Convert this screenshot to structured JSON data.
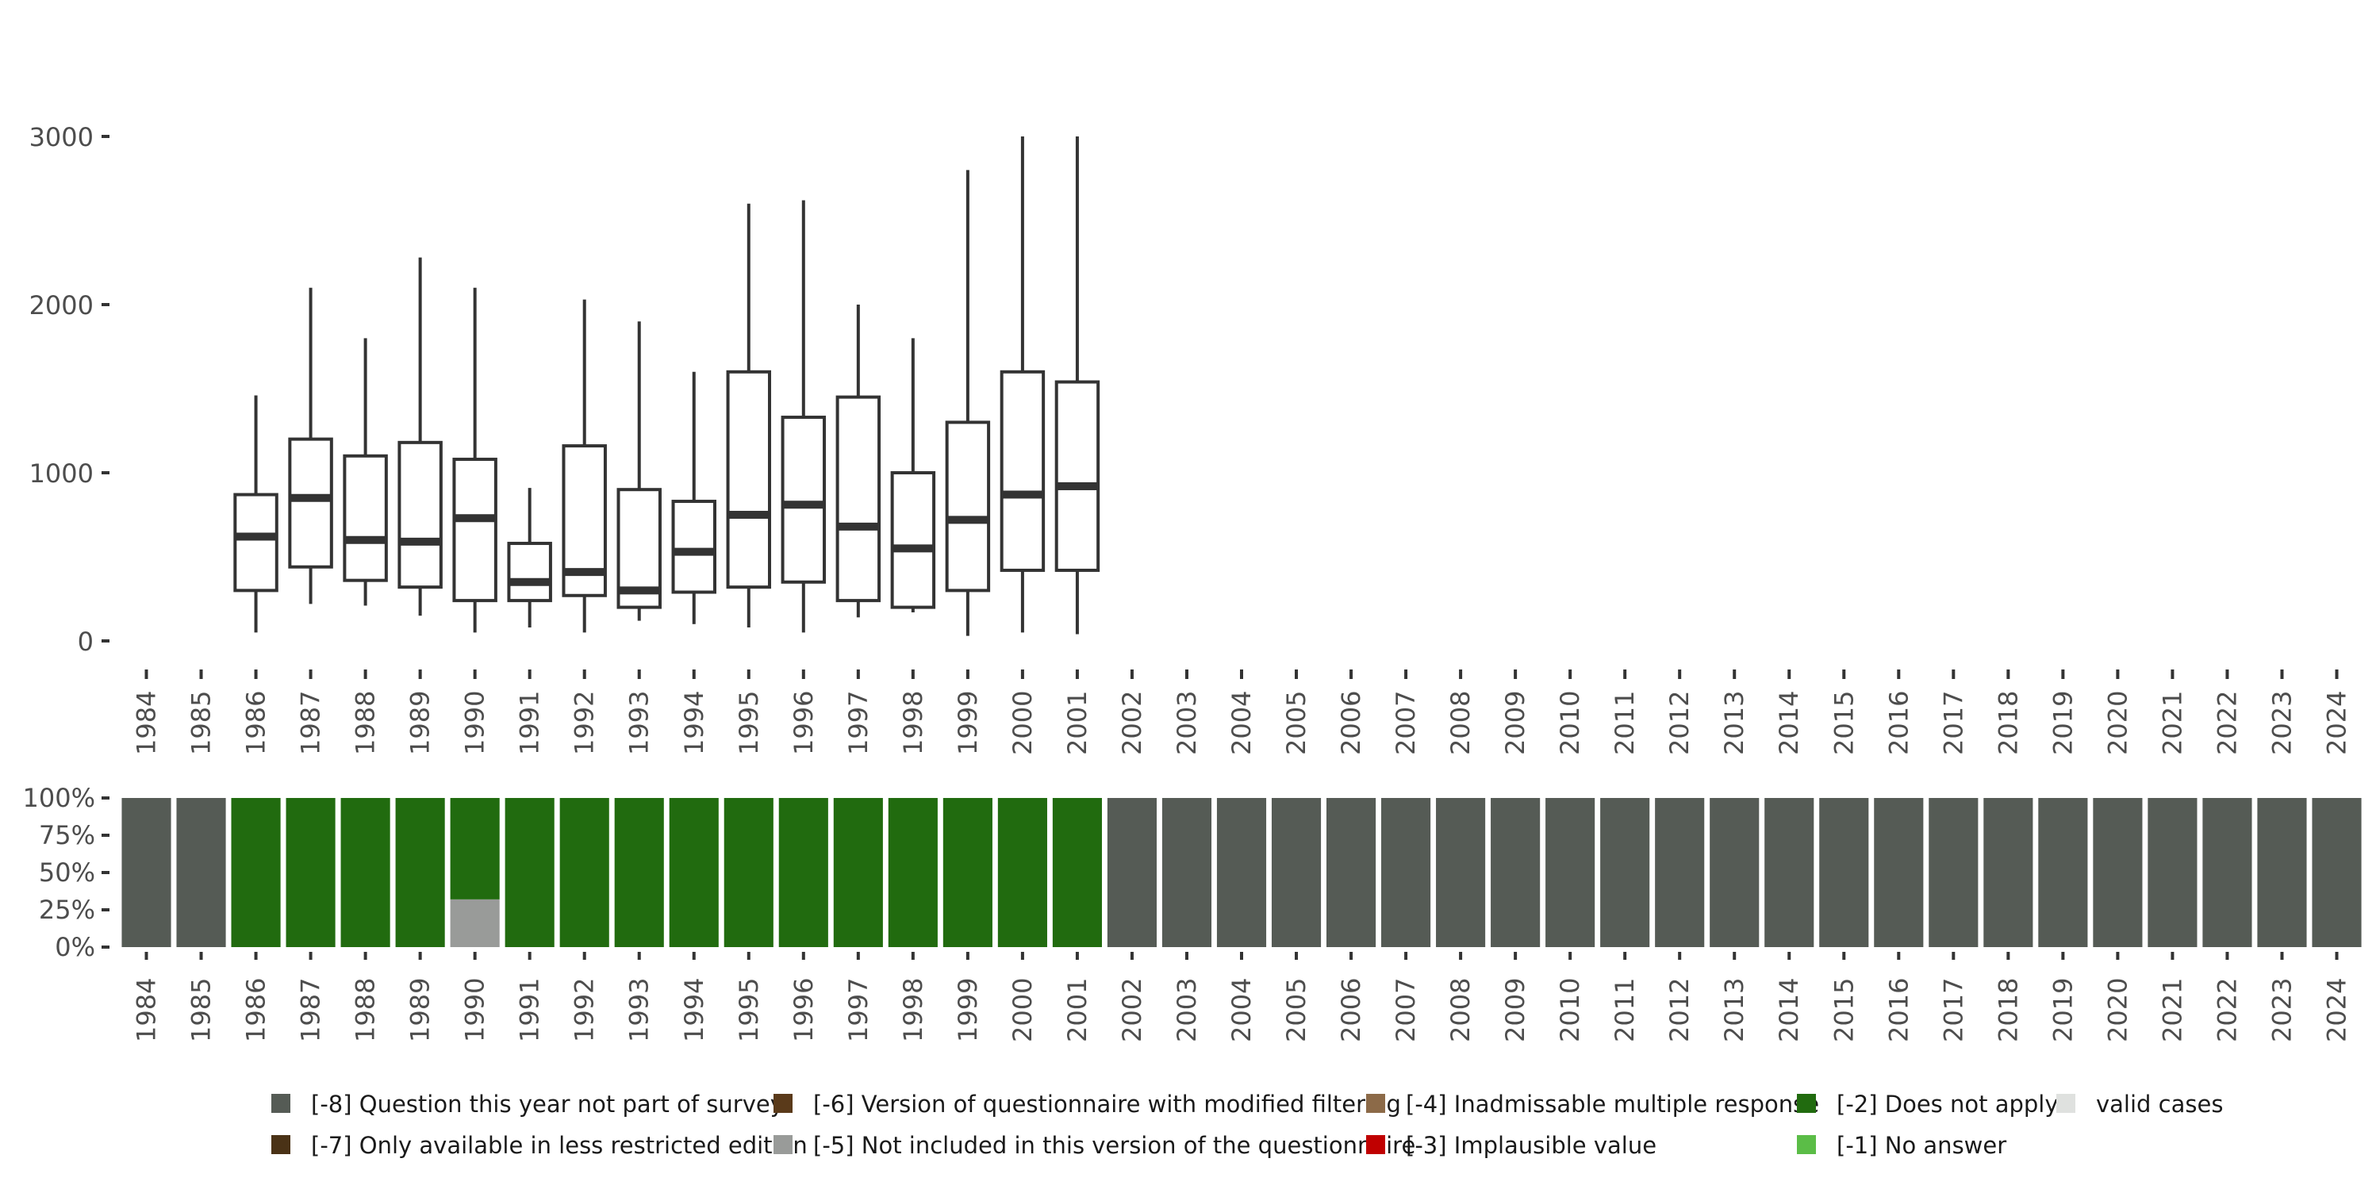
{
  "chart_data": [
    {
      "type": "boxplot",
      "x": [
        "1984",
        "1985",
        "1986",
        "1987",
        "1988",
        "1989",
        "1990",
        "1991",
        "1992",
        "1993",
        "1994",
        "1995",
        "1996",
        "1997",
        "1998",
        "1999",
        "2000",
        "2001",
        "2002",
        "2003",
        "2004",
        "2005",
        "2006",
        "2007",
        "2008",
        "2009",
        "2010",
        "2011",
        "2012",
        "2013",
        "2014",
        "2015",
        "2016",
        "2017",
        "2018",
        "2019",
        "2020",
        "2021",
        "2022",
        "2023",
        "2024"
      ],
      "ylim": [
        0,
        3000
      ],
      "yticks": [
        0,
        1000,
        2000,
        3000
      ],
      "ytick_labels": [
        "0",
        "1000",
        "2000",
        "3000"
      ],
      "boxes": [
        {
          "year": "1986",
          "min": 50,
          "q1": 300,
          "median": 620,
          "q3": 870,
          "max": 1460
        },
        {
          "year": "1987",
          "min": 220,
          "q1": 440,
          "median": 850,
          "q3": 1200,
          "max": 2100
        },
        {
          "year": "1988",
          "min": 210,
          "q1": 360,
          "median": 600,
          "q3": 1100,
          "max": 1800
        },
        {
          "year": "1989",
          "min": 150,
          "q1": 320,
          "median": 590,
          "q3": 1180,
          "max": 2280
        },
        {
          "year": "1990",
          "min": 50,
          "q1": 240,
          "median": 730,
          "q3": 1080,
          "max": 2100
        },
        {
          "year": "1991",
          "min": 80,
          "q1": 240,
          "median": 350,
          "q3": 580,
          "max": 910
        },
        {
          "year": "1992",
          "min": 50,
          "q1": 270,
          "median": 410,
          "q3": 1160,
          "max": 2030
        },
        {
          "year": "1993",
          "min": 120,
          "q1": 200,
          "median": 300,
          "q3": 900,
          "max": 1900
        },
        {
          "year": "1994",
          "min": 100,
          "q1": 290,
          "median": 530,
          "q3": 830,
          "max": 1600
        },
        {
          "year": "1995",
          "min": 80,
          "q1": 320,
          "median": 750,
          "q3": 1600,
          "max": 2600
        },
        {
          "year": "1996",
          "min": 50,
          "q1": 350,
          "median": 810,
          "q3": 1330,
          "max": 2620
        },
        {
          "year": "1997",
          "min": 140,
          "q1": 240,
          "median": 680,
          "q3": 1450,
          "max": 2000
        },
        {
          "year": "1998",
          "min": 170,
          "q1": 200,
          "median": 550,
          "q3": 1000,
          "max": 1800
        },
        {
          "year": "1999",
          "min": 30,
          "q1": 300,
          "median": 720,
          "q3": 1300,
          "max": 2800
        },
        {
          "year": "2000",
          "min": 50,
          "q1": 420,
          "median": 870,
          "q3": 1600,
          "max": 3000
        },
        {
          "year": "2001",
          "min": 40,
          "q1": 420,
          "median": 920,
          "q3": 1540,
          "max": 3000
        }
      ]
    },
    {
      "type": "stacked_bar",
      "x": [
        "1984",
        "1985",
        "1986",
        "1987",
        "1988",
        "1989",
        "1990",
        "1991",
        "1992",
        "1993",
        "1994",
        "1995",
        "1996",
        "1997",
        "1998",
        "1999",
        "2000",
        "2001",
        "2002",
        "2003",
        "2004",
        "2005",
        "2006",
        "2007",
        "2008",
        "2009",
        "2010",
        "2011",
        "2012",
        "2013",
        "2014",
        "2015",
        "2016",
        "2017",
        "2018",
        "2019",
        "2020",
        "2021",
        "2022",
        "2023",
        "2024"
      ],
      "ylim": [
        0,
        1
      ],
      "ytick_labels": [
        "0%",
        "25%",
        "50%",
        "75%",
        "100%"
      ],
      "series": [
        {
          "name": "[-8] Question this year not part of survey",
          "color": "#555b55",
          "values": [
            1,
            1,
            0,
            0,
            0,
            0,
            0,
            0,
            0,
            0,
            0,
            0,
            0,
            0,
            0,
            0,
            0,
            0,
            1,
            1,
            1,
            1,
            1,
            1,
            1,
            1,
            1,
            1,
            1,
            1,
            1,
            1,
            1,
            1,
            1,
            1,
            1,
            1,
            1,
            1,
            1
          ]
        },
        {
          "name": "[-7] Only available in less restricted edition",
          "color": "#4a3216",
          "values": [
            0,
            0,
            0,
            0,
            0,
            0,
            0,
            0,
            0,
            0,
            0,
            0,
            0,
            0,
            0,
            0,
            0,
            0,
            0,
            0,
            0,
            0,
            0,
            0,
            0,
            0,
            0,
            0,
            0,
            0,
            0,
            0,
            0,
            0,
            0,
            0,
            0,
            0,
            0,
            0,
            0
          ]
        },
        {
          "name": "[-6] Version of questionnaire with modified filtering",
          "color": "#5a3a1a",
          "values": [
            0,
            0,
            0,
            0,
            0,
            0,
            0,
            0,
            0,
            0,
            0,
            0,
            0,
            0,
            0,
            0,
            0,
            0,
            0,
            0,
            0,
            0,
            0,
            0,
            0,
            0,
            0,
            0,
            0,
            0,
            0,
            0,
            0,
            0,
            0,
            0,
            0,
            0,
            0,
            0,
            0
          ]
        },
        {
          "name": "[-5] Not included in this version of the questionnaire",
          "color": "#999b99",
          "values": [
            0,
            0,
            0,
            0,
            0,
            0,
            0.32,
            0,
            0,
            0,
            0,
            0,
            0,
            0,
            0,
            0,
            0,
            0,
            0,
            0,
            0,
            0,
            0,
            0,
            0,
            0,
            0,
            0,
            0,
            0,
            0,
            0,
            0,
            0,
            0,
            0,
            0,
            0,
            0,
            0,
            0
          ]
        },
        {
          "name": "[-4] Inadmissable multiple response",
          "color": "#8c6a48",
          "values": [
            0,
            0,
            0,
            0,
            0,
            0,
            0,
            0,
            0,
            0,
            0,
            0,
            0,
            0,
            0,
            0,
            0,
            0,
            0,
            0,
            0,
            0,
            0,
            0,
            0,
            0,
            0,
            0,
            0,
            0,
            0,
            0,
            0,
            0,
            0,
            0,
            0,
            0,
            0,
            0,
            0
          ]
        },
        {
          "name": "[-3] Implausible value",
          "color": "#c00000",
          "values": [
            0,
            0,
            0,
            0,
            0,
            0,
            0,
            0,
            0,
            0,
            0,
            0,
            0,
            0,
            0,
            0,
            0,
            0,
            0,
            0,
            0,
            0,
            0,
            0,
            0,
            0,
            0,
            0,
            0,
            0,
            0,
            0,
            0,
            0,
            0,
            0,
            0,
            0,
            0,
            0,
            0
          ]
        },
        {
          "name": "[-2] Does not apply",
          "color": "#216b0f",
          "values": [
            0,
            0,
            1,
            1,
            1,
            1,
            0.68,
            1,
            1,
            1,
            1,
            1,
            1,
            1,
            1,
            1,
            1,
            1,
            0,
            0,
            0,
            0,
            0,
            0,
            0,
            0,
            0,
            0,
            0,
            0,
            0,
            0,
            0,
            0,
            0,
            0,
            0,
            0,
            0,
            0,
            0
          ]
        },
        {
          "name": "[-1] No answer",
          "color": "#5bbd47",
          "values": [
            0,
            0,
            0,
            0,
            0,
            0,
            0,
            0,
            0,
            0,
            0,
            0,
            0,
            0,
            0,
            0,
            0,
            0,
            0,
            0,
            0,
            0,
            0,
            0,
            0,
            0,
            0,
            0,
            0,
            0,
            0,
            0,
            0,
            0,
            0,
            0,
            0,
            0,
            0,
            0,
            0
          ]
        },
        {
          "name": "valid cases",
          "color": "#dfe1df",
          "values": [
            0,
            0,
            0,
            0,
            0,
            0,
            0,
            0,
            0,
            0,
            0,
            0,
            0,
            0,
            0,
            0,
            0,
            0,
            0,
            0,
            0,
            0,
            0,
            0,
            0,
            0,
            0,
            0,
            0,
            0,
            0,
            0,
            0,
            0,
            0,
            0,
            0,
            0,
            0,
            0,
            0
          ]
        }
      ],
      "legend_position": "bottom",
      "legend_order": [
        "[-8] Question this year not part of survey",
        "[-7] Only available in less restricted edition",
        "[-6] Version of questionnaire with modified filtering",
        "[-5] Not included in this version of the questionnaire",
        "[-4] Inadmissable multiple response",
        "[-3] Implausible value",
        "[-2] Does not apply",
        "[-1] No answer",
        "valid cases"
      ]
    }
  ]
}
